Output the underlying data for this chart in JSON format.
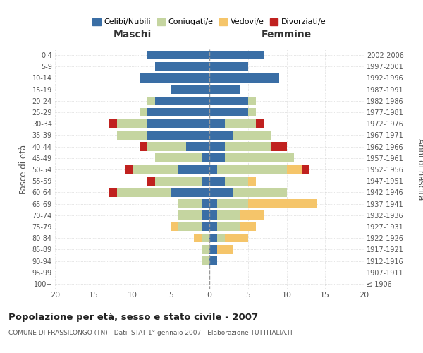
{
  "age_groups": [
    "100+",
    "95-99",
    "90-94",
    "85-89",
    "80-84",
    "75-79",
    "70-74",
    "65-69",
    "60-64",
    "55-59",
    "50-54",
    "45-49",
    "40-44",
    "35-39",
    "30-34",
    "25-29",
    "20-24",
    "15-19",
    "10-14",
    "5-9",
    "0-4"
  ],
  "birth_years": [
    "≤ 1906",
    "1907-1911",
    "1912-1916",
    "1917-1921",
    "1922-1926",
    "1927-1931",
    "1932-1936",
    "1937-1941",
    "1942-1946",
    "1947-1951",
    "1952-1956",
    "1957-1961",
    "1962-1966",
    "1967-1971",
    "1972-1976",
    "1977-1981",
    "1982-1986",
    "1987-1991",
    "1992-1996",
    "1997-2001",
    "2002-2006"
  ],
  "maschi": {
    "celibi": [
      0,
      0,
      0,
      0,
      0,
      1,
      1,
      1,
      5,
      1,
      4,
      1,
      3,
      8,
      8,
      8,
      7,
      5,
      9,
      7,
      8
    ],
    "coniugati": [
      0,
      0,
      1,
      1,
      1,
      3,
      3,
      3,
      7,
      6,
      6,
      6,
      5,
      4,
      4,
      1,
      1,
      0,
      0,
      0,
      0
    ],
    "vedovi": [
      0,
      0,
      0,
      0,
      1,
      1,
      0,
      0,
      0,
      0,
      0,
      0,
      0,
      0,
      0,
      0,
      0,
      0,
      0,
      0,
      0
    ],
    "divorziati": [
      0,
      0,
      0,
      0,
      0,
      0,
      0,
      0,
      1,
      1,
      1,
      0,
      1,
      0,
      1,
      0,
      0,
      0,
      0,
      0,
      0
    ]
  },
  "femmine": {
    "nubili": [
      0,
      0,
      1,
      1,
      1,
      1,
      1,
      1,
      3,
      2,
      1,
      2,
      2,
      3,
      2,
      5,
      5,
      4,
      9,
      5,
      7
    ],
    "coniugate": [
      0,
      0,
      0,
      0,
      1,
      3,
      3,
      4,
      7,
      3,
      9,
      9,
      6,
      5,
      4,
      1,
      1,
      0,
      0,
      0,
      0
    ],
    "vedove": [
      0,
      0,
      0,
      2,
      3,
      2,
      3,
      9,
      0,
      1,
      2,
      0,
      0,
      0,
      0,
      0,
      0,
      0,
      0,
      0,
      0
    ],
    "divorziate": [
      0,
      0,
      0,
      0,
      0,
      0,
      0,
      0,
      0,
      0,
      1,
      0,
      2,
      0,
      1,
      0,
      0,
      0,
      0,
      0,
      0
    ]
  },
  "colors": {
    "celibi": "#3a6ea5",
    "coniugati": "#c5d5a0",
    "vedovi": "#f5c56a",
    "divorziati": "#c0211f"
  },
  "xlim": 20,
  "title": "Popolazione per età, sesso e stato civile - 2007",
  "subtitle": "COMUNE DI FRASSILONGO (TN) - Dati ISTAT 1° gennaio 2007 - Elaborazione TUTTITALIA.IT",
  "xlabel_left": "Maschi",
  "xlabel_right": "Femmine",
  "ylabel_left": "Fasce di età",
  "ylabel_right": "Anni di nascita",
  "legend_labels": [
    "Celibi/Nubili",
    "Coniugati/e",
    "Vedovi/e",
    "Divorziati/e"
  ],
  "background_color": "#ffffff",
  "grid_color": "#cccccc"
}
